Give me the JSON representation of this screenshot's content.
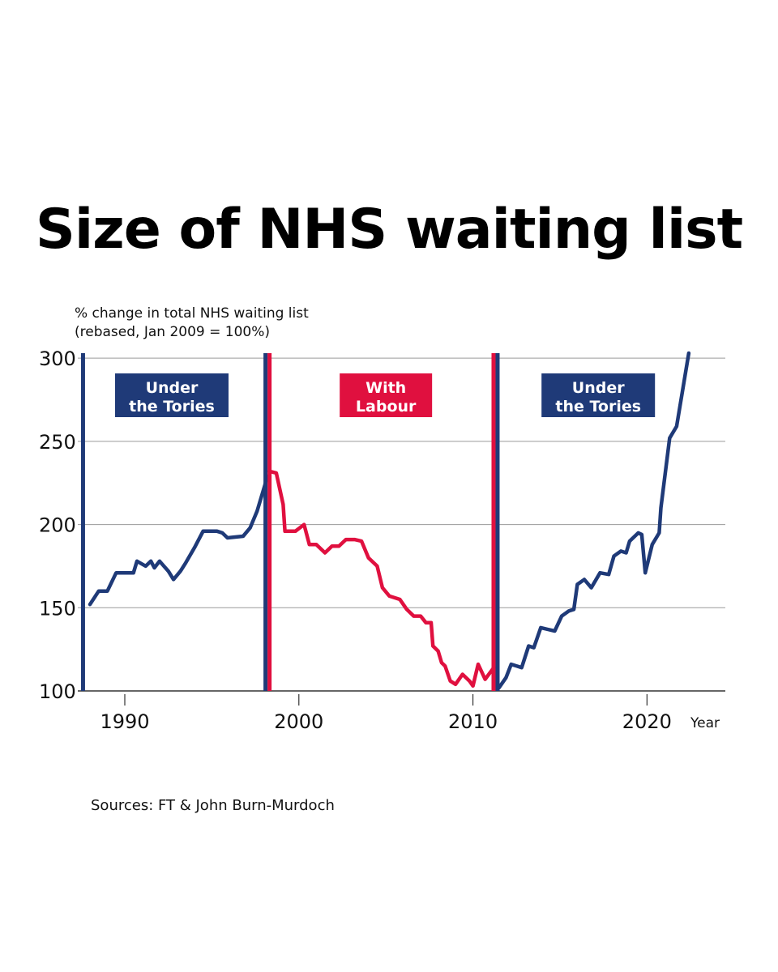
{
  "title": "Size of NHS waiting list",
  "source": "Sources: FT & John Burn-Murdoch",
  "colors": {
    "tory": "#1f3a78",
    "labour": "#e0103f",
    "grid": "#9a9a9a",
    "axis": "#333333"
  },
  "chart_data": {
    "type": "line",
    "title": "Size of NHS waiting list",
    "ylabel_lines": [
      "% change in total NHS waiting list",
      "(rebased, Jan 2009 = 100%)"
    ],
    "xlabel": "Year",
    "xlim": [
      1987.3,
      2024.5
    ],
    "ylim": [
      100,
      303
    ],
    "yticks": [
      100,
      150,
      200,
      250,
      300
    ],
    "xticks": [
      1990,
      2000,
      2010,
      2020
    ],
    "grid": "horizontal",
    "eras": [
      {
        "label_lines": [
          "Under",
          "the Tories"
        ],
        "party": "tory",
        "start": 1987.6,
        "end": 1998.2,
        "label_x": 1992.7
      },
      {
        "label_lines": [
          "With",
          "Labour"
        ],
        "party": "labour",
        "start": 1998.2,
        "end": 2011.3,
        "label_x": 2005.0
      },
      {
        "label_lines": [
          "Under",
          "the Tories"
        ],
        "party": "tory",
        "start": 2011.3,
        "end": 2024.5,
        "label_x": 2017.2
      }
    ],
    "dividers": [
      {
        "x": 1987.6,
        "colors": [
          "tory"
        ]
      },
      {
        "x": 1998.2,
        "colors": [
          "tory",
          "labour"
        ]
      },
      {
        "x": 2011.3,
        "colors": [
          "labour",
          "tory"
        ]
      }
    ],
    "series": [
      {
        "name": "Under the Tories (1988–1998)",
        "party": "tory",
        "x": [
          1988.0,
          1988.5,
          1989.0,
          1989.5,
          1990.0,
          1990.5,
          1990.7,
          1991.2,
          1991.5,
          1991.7,
          1992.0,
          1992.5,
          1992.8,
          1993.2,
          1993.5,
          1994.0,
          1994.5,
          1994.9,
          1995.3,
          1995.6,
          1995.9,
          1996.8,
          1997.2,
          1997.6,
          1998.0,
          1998.2
        ],
        "values": [
          152,
          160,
          160,
          171,
          171,
          171,
          178,
          175,
          178,
          174,
          178,
          172,
          167,
          172,
          177,
          186,
          196,
          196,
          196,
          195,
          192,
          193,
          198,
          208,
          222,
          229
        ]
      },
      {
        "name": "With Labour (1998–2011)",
        "party": "labour",
        "x": [
          1998.3,
          1998.7,
          1999.1,
          1999.2,
          1999.8,
          2000.3,
          2000.6,
          2001.0,
          2001.5,
          2001.9,
          2002.3,
          2002.7,
          2003.2,
          2003.6,
          2004.0,
          2004.5,
          2004.8,
          2005.2,
          2005.8,
          2006.2,
          2006.6,
          2007.0,
          2007.3,
          2007.6,
          2007.7,
          2008.0,
          2008.2,
          2008.4,
          2008.7,
          2009.0,
          2009.4,
          2009.8,
          2010.0,
          2010.3,
          2010.7,
          2011.2
        ],
        "values": [
          232,
          231,
          212,
          196,
          196,
          200,
          188,
          188,
          183,
          187,
          187,
          191,
          191,
          190,
          180,
          175,
          162,
          157,
          155,
          149,
          145,
          145,
          141,
          141,
          127,
          124,
          117,
          115,
          106,
          104,
          110,
          106,
          103,
          116,
          107,
          114
        ]
      },
      {
        "name": "Under the Tories (2011–2022)",
        "party": "tory",
        "x": [
          2011.5,
          2011.9,
          2012.2,
          2012.8,
          2013.2,
          2013.5,
          2013.9,
          2014.3,
          2014.7,
          2015.1,
          2015.5,
          2015.8,
          2016.0,
          2016.4,
          2016.8,
          2017.3,
          2017.8,
          2018.1,
          2018.5,
          2018.8,
          2019.0,
          2019.5,
          2019.7,
          2019.9,
          2020.3,
          2020.7,
          2020.8,
          2021.3,
          2021.7,
          2022.4
        ],
        "values": [
          102,
          108,
          116,
          114,
          127,
          126,
          138,
          137,
          136,
          145,
          148,
          149,
          164,
          167,
          162,
          171,
          170,
          181,
          184,
          183,
          190,
          195,
          194,
          171,
          188,
          195,
          210,
          252,
          259,
          303
        ]
      }
    ]
  }
}
